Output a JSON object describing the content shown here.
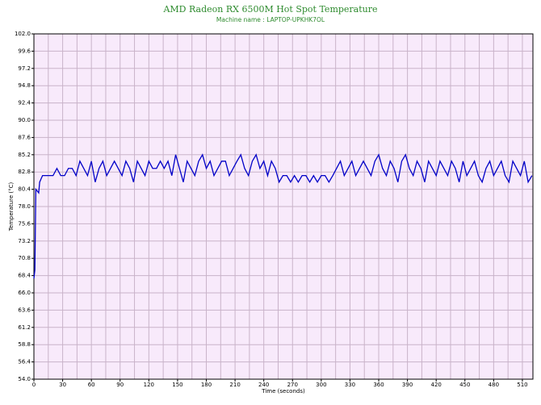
{
  "chart_data": {
    "type": "line",
    "title": "AMD Radeon RX 6500M Hot Spot Temperature",
    "subtitle": "Machine name : LAPTOP-UPKHK7OL",
    "x_label": "Time (seconds)",
    "y_label": "Temperature (°C)",
    "x": [
      0,
      1,
      2,
      5,
      6,
      9,
      12,
      16,
      20,
      24,
      28,
      32,
      36,
      40,
      44,
      48,
      52,
      56,
      60,
      64,
      68,
      72,
      76,
      80,
      84,
      88,
      92,
      96,
      100,
      104,
      108,
      112,
      116,
      120,
      124,
      128,
      132,
      136,
      140,
      144,
      148,
      152,
      156,
      160,
      164,
      168,
      172,
      176,
      180,
      184,
      188,
      192,
      196,
      200,
      204,
      208,
      212,
      216,
      220,
      224,
      228,
      232,
      236,
      240,
      244,
      248,
      252,
      256,
      260,
      264,
      268,
      272,
      276,
      280,
      284,
      288,
      292,
      296,
      300,
      304,
      308,
      312,
      316,
      320,
      324,
      328,
      332,
      336,
      340,
      344,
      348,
      352,
      356,
      360,
      364,
      368,
      372,
      376,
      380,
      384,
      388,
      392,
      396,
      400,
      404,
      408,
      412,
      416,
      420,
      424,
      428,
      432,
      436,
      440,
      444,
      448,
      452,
      456,
      460,
      464,
      468,
      472,
      476,
      480,
      484,
      488,
      492,
      496,
      500,
      504,
      508,
      512,
      516,
      520
    ],
    "series": [
      {
        "name": "Hot Spot Temperature",
        "color": "#0000c8",
        "values": [
          68.0,
          69.2,
          80.4,
          79.9,
          81.4,
          82.3,
          82.3,
          82.3,
          82.3,
          83.3,
          82.3,
          82.3,
          83.3,
          83.3,
          82.3,
          84.3,
          83.3,
          82.3,
          84.3,
          81.4,
          83.3,
          84.3,
          82.3,
          83.3,
          84.3,
          83.3,
          82.3,
          84.3,
          83.3,
          81.4,
          84.3,
          83.3,
          82.3,
          84.3,
          83.3,
          83.3,
          84.3,
          83.3,
          84.3,
          82.3,
          85.2,
          83.3,
          81.4,
          84.3,
          83.3,
          82.3,
          84.3,
          85.2,
          83.3,
          84.3,
          82.3,
          83.3,
          84.3,
          84.3,
          82.3,
          83.3,
          84.3,
          85.2,
          83.3,
          82.3,
          84.3,
          85.2,
          83.3,
          84.3,
          82.3,
          84.3,
          83.3,
          81.4,
          82.3,
          82.3,
          81.4,
          82.3,
          81.4,
          82.3,
          82.3,
          81.4,
          82.3,
          81.4,
          82.3,
          82.3,
          81.4,
          82.3,
          83.3,
          84.3,
          82.3,
          83.3,
          84.3,
          82.3,
          83.3,
          84.3,
          83.3,
          82.3,
          84.3,
          85.2,
          83.3,
          82.3,
          84.3,
          83.3,
          81.4,
          84.3,
          85.2,
          83.3,
          82.3,
          84.3,
          83.3,
          81.4,
          84.3,
          83.3,
          82.3,
          84.3,
          83.3,
          82.3,
          84.3,
          83.3,
          81.4,
          84.3,
          82.3,
          83.3,
          84.3,
          82.3,
          81.4,
          83.3,
          84.3,
          82.3,
          83.3,
          84.3,
          82.3,
          81.4,
          84.3,
          83.3,
          82.3,
          84.3,
          81.4,
          82.3
        ]
      }
    ],
    "xlim": [
      0,
      521
    ],
    "xticks": [
      0,
      30,
      60,
      90,
      120,
      150,
      180,
      210,
      240,
      270,
      300,
      330,
      360,
      390,
      420,
      450,
      480,
      510
    ],
    "ylim": [
      54,
      102
    ],
    "yticks": [
      {
        "value": 54,
        "label": "54.0"
      },
      56.4,
      58.8,
      61.2,
      63.6,
      {
        "value": 66,
        "label": "66.0"
      },
      68.4,
      70.8,
      73.2,
      75.6,
      {
        "value": 78,
        "label": "78.0"
      },
      80.4,
      82.8,
      85.2,
      87.6,
      {
        "value": 90,
        "label": "90.0"
      },
      92.4,
      94.8,
      97.2,
      99.6,
      {
        "value": 102,
        "label": "102.0"
      }
    ],
    "grid": true,
    "minor_x_grid": true,
    "background": "#f8eafb"
  }
}
